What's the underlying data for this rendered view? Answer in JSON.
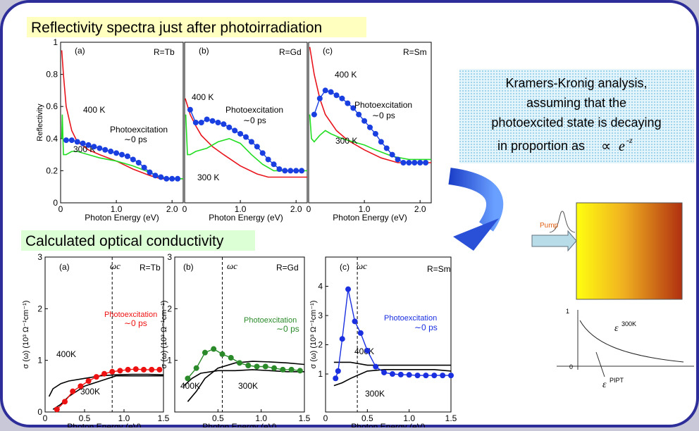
{
  "slide": {
    "heading_top": "Reflectivity spectra just after photoirradiation",
    "heading_bottom": "Calculated optical conductivity",
    "note": {
      "lines": [
        "Kramers-Kronig analysis,",
        "assuming that the",
        "photoexcited state is decaying",
        "in proportion as"
      ],
      "symbol": "∝",
      "base": "e",
      "exponent": "-z"
    }
  },
  "chart_data": [
    {
      "type": "line",
      "xlabel": "Photon Energy (eV)",
      "ylabel": "Reflectivity",
      "xlim": [
        0,
        2.2
      ],
      "ylim": [
        0,
        1
      ],
      "xticks": [
        0,
        {
          "value": 1,
          "label": "1.0"
        },
        {
          "value": 2,
          "label": "2.0"
        }
      ],
      "yticks": [
        0,
        0.2,
        0.4,
        0.6,
        0.8,
        1
      ],
      "annotations": [
        "(a)",
        "R=Tb",
        "∼0 ps"
      ],
      "series": [
        {
          "name": "400 K",
          "color": "#e8141c",
          "mode": "line",
          "x": [
            0.02,
            0.05,
            0.1,
            0.2,
            0.3,
            0.5,
            0.7,
            1.0,
            1.3,
            1.6,
            1.8,
            2.0,
            2.2
          ],
          "values": [
            0.95,
            0.8,
            0.6,
            0.45,
            0.38,
            0.33,
            0.3,
            0.26,
            0.21,
            0.17,
            0.15,
            0.15,
            0.15
          ]
        },
        {
          "name": "300 K",
          "color": "#22dd22",
          "mode": "line",
          "x": [
            0.02,
            0.03,
            0.05,
            0.1,
            0.2,
            0.3,
            0.5,
            0.7,
            1.0,
            1.3,
            1.6,
            1.8,
            2.0,
            2.2
          ],
          "values": [
            0.4,
            0.55,
            0.3,
            0.3,
            0.32,
            0.32,
            0.3,
            0.28,
            0.26,
            0.23,
            0.19,
            0.16,
            0.15,
            0.15
          ]
        },
        {
          "name": "Photoexcitation",
          "color": "#1a3fe0",
          "mode": "line+points",
          "x": [
            0.1,
            0.2,
            0.3,
            0.4,
            0.5,
            0.6,
            0.7,
            0.8,
            0.9,
            1.0,
            1.1,
            1.2,
            1.3,
            1.4,
            1.5,
            1.6,
            1.7,
            1.8,
            1.9,
            2.0,
            2.1
          ],
          "values": [
            0.39,
            0.39,
            0.38,
            0.37,
            0.36,
            0.35,
            0.34,
            0.33,
            0.32,
            0.31,
            0.3,
            0.29,
            0.27,
            0.25,
            0.22,
            0.19,
            0.17,
            0.16,
            0.15,
            0.15,
            0.15
          ]
        }
      ]
    },
    {
      "type": "line",
      "xlabel": "Photon Energy (eV)",
      "xlim": [
        0,
        2.2
      ],
      "ylim": [
        0,
        1
      ],
      "xticks": [
        0,
        {
          "value": 1,
          "label": "1.0"
        },
        {
          "value": 2,
          "label": "2.0"
        }
      ],
      "annotations": [
        "(b)",
        "R=Gd",
        "∼0 ps"
      ],
      "series": [
        {
          "name": "400 K",
          "color": "#e8141c",
          "mode": "line",
          "x": [
            0.01,
            0.02,
            0.1,
            0.2,
            0.3,
            0.5,
            0.7,
            1.0,
            1.3,
            1.5,
            1.8,
            2.2
          ],
          "values": [
            0.65,
            0.64,
            0.55,
            0.48,
            0.42,
            0.35,
            0.3,
            0.23,
            0.18,
            0.16,
            0.16,
            0.16
          ]
        },
        {
          "name": "300 K",
          "color": "#22dd22",
          "mode": "line",
          "x": [
            0.02,
            0.05,
            0.1,
            0.2,
            0.4,
            0.6,
            0.8,
            1.0,
            1.2,
            1.4,
            1.6,
            2.2
          ],
          "values": [
            0.55,
            0.3,
            0.3,
            0.32,
            0.34,
            0.38,
            0.4,
            0.37,
            0.3,
            0.24,
            0.2,
            0.2
          ]
        },
        {
          "name": "Photoexcitation",
          "color": "#1a3fe0",
          "mode": "line+points",
          "x": [
            0.1,
            0.2,
            0.3,
            0.4,
            0.5,
            0.6,
            0.7,
            0.8,
            0.9,
            1.0,
            1.1,
            1.2,
            1.3,
            1.4,
            1.5,
            1.6,
            1.7,
            1.8,
            1.9,
            2.0,
            2.1
          ],
          "values": [
            0.58,
            0.5,
            0.5,
            0.52,
            0.51,
            0.5,
            0.49,
            0.47,
            0.45,
            0.43,
            0.41,
            0.38,
            0.35,
            0.31,
            0.27,
            0.24,
            0.21,
            0.2,
            0.2,
            0.2,
            0.2
          ]
        }
      ]
    },
    {
      "type": "line",
      "xlabel": "Photon Energy (eV)",
      "xlim": [
        0,
        2.2
      ],
      "ylim": [
        0,
        1
      ],
      "xticks": [
        0,
        {
          "value": 1,
          "label": "1.0"
        },
        {
          "value": 2,
          "label": "2.0"
        }
      ],
      "annotations": [
        "(c)",
        "R=Sm",
        "∼0 ps"
      ],
      "series": [
        {
          "name": "400 K",
          "color": "#e8141c",
          "mode": "line",
          "x": [
            0.02,
            0.1,
            0.2,
            0.3,
            0.5,
            0.7,
            1.0,
            1.3,
            1.6,
            1.8,
            2.2
          ],
          "values": [
            0.97,
            0.8,
            0.65,
            0.55,
            0.45,
            0.39,
            0.33,
            0.28,
            0.25,
            0.25,
            0.25
          ]
        },
        {
          "name": "300 K",
          "color": "#22dd22",
          "mode": "line",
          "x": [
            0.02,
            0.05,
            0.1,
            0.2,
            0.3,
            0.4,
            0.6,
            0.8,
            1.0,
            1.2,
            1.5,
            1.8,
            2.2
          ],
          "values": [
            0.55,
            0.4,
            0.38,
            0.42,
            0.45,
            0.43,
            0.4,
            0.38,
            0.36,
            0.33,
            0.29,
            0.27,
            0.27
          ]
        },
        {
          "name": "Photoexcitation",
          "color": "#1a3fe0",
          "mode": "line+points",
          "x": [
            0.1,
            0.2,
            0.3,
            0.4,
            0.5,
            0.6,
            0.7,
            0.8,
            0.9,
            1.0,
            1.1,
            1.2,
            1.3,
            1.4,
            1.5,
            1.6,
            1.7,
            1.8,
            1.9,
            2.0,
            2.1
          ],
          "values": [
            0.55,
            0.65,
            0.7,
            0.69,
            0.67,
            0.65,
            0.62,
            0.59,
            0.55,
            0.51,
            0.47,
            0.43,
            0.38,
            0.34,
            0.3,
            0.27,
            0.25,
            0.25,
            0.25,
            0.25,
            0.25
          ]
        }
      ]
    },
    {
      "type": "line",
      "xlabel": "Photon Energy (eV)",
      "ylabel": "σ (ω) (10³ Ω⁻¹cm⁻¹)",
      "xlim": [
        0,
        1.5
      ],
      "ylim": [
        0,
        3
      ],
      "xticks": [
        0,
        0.5,
        {
          "value": 1,
          "label": "1.0"
        },
        1.5
      ],
      "yticks": [
        0,
        1,
        2,
        3
      ],
      "vline": 0.85,
      "annotations": [
        "(a)",
        "R=Tb",
        "∼0 ps",
        "ωc"
      ],
      "series": [
        {
          "name": "400K",
          "color": "#000000",
          "mode": "line",
          "x": [
            0.05,
            0.1,
            0.2,
            0.3,
            0.5,
            0.7,
            0.9,
            1.1,
            1.3,
            1.5
          ],
          "values": [
            0.3,
            0.45,
            0.55,
            0.6,
            0.65,
            0.7,
            0.72,
            0.73,
            0.73,
            0.72
          ]
        },
        {
          "name": "300K",
          "color": "#000000",
          "mode": "line",
          "x": [
            0.1,
            0.2,
            0.3,
            0.5,
            0.7,
            0.9,
            1.1,
            1.3,
            1.5
          ],
          "values": [
            0.05,
            0.15,
            0.3,
            0.5,
            0.6,
            0.7,
            0.7,
            0.7,
            0.7
          ]
        },
        {
          "name": "Photoexcitation",
          "color": "#ee1111",
          "mode": "line+points",
          "x": [
            0.15,
            0.25,
            0.35,
            0.45,
            0.55,
            0.65,
            0.75,
            0.85,
            0.95,
            1.05,
            1.15,
            1.25,
            1.35,
            1.45
          ],
          "values": [
            0.05,
            0.2,
            0.4,
            0.5,
            0.6,
            0.68,
            0.74,
            0.78,
            0.8,
            0.82,
            0.83,
            0.82,
            0.82,
            0.82
          ]
        }
      ]
    },
    {
      "type": "line",
      "xlabel": "Photon Energy (eV)",
      "ylabel": "σ (ω) (10³ Ω⁻¹cm⁻¹)",
      "xlim": [
        0,
        1.5
      ],
      "ylim": [
        0,
        3
      ],
      "xticks": [
        0.5,
        {
          "value": 1,
          "label": "1.0"
        },
        1.5
      ],
      "yticks": [
        1,
        2,
        3
      ],
      "vline": 0.55,
      "annotations": [
        "(b)",
        "R=Gd",
        "∼0 ps",
        "ωc"
      ],
      "series": [
        {
          "name": "400K",
          "color": "#000000",
          "mode": "line",
          "x": [
            0.1,
            0.2,
            0.3,
            0.5,
            0.7,
            0.9,
            1.1,
            1.3,
            1.5
          ],
          "values": [
            0.5,
            0.65,
            0.75,
            0.8,
            0.8,
            0.82,
            0.8,
            0.78,
            0.78
          ]
        },
        {
          "name": "300K",
          "color": "#000000",
          "mode": "line",
          "x": [
            0.15,
            0.25,
            0.35,
            0.5,
            0.7,
            0.9,
            1.1,
            1.3,
            1.5
          ],
          "values": [
            0.2,
            0.4,
            0.65,
            0.85,
            0.95,
            0.98,
            0.97,
            0.95,
            0.92
          ]
        },
        {
          "name": "Photoexcitation",
          "color": "#2a8a2a",
          "mode": "line+points",
          "x": [
            0.15,
            0.25,
            0.35,
            0.45,
            0.55,
            0.65,
            0.75,
            0.85,
            0.95,
            1.05,
            1.15,
            1.25,
            1.35,
            1.45
          ],
          "values": [
            0.65,
            0.85,
            1.15,
            1.22,
            1.12,
            1.05,
            0.95,
            0.9,
            0.88,
            0.88,
            0.85,
            0.82,
            0.82,
            0.8
          ]
        }
      ]
    },
    {
      "type": "line",
      "xlabel": "Photon Energy (eV)",
      "ylabel": "σ (ω) (10³ Ω⁻¹cm⁻¹)",
      "xlim": [
        0,
        1.5
      ],
      "ylim": [
        -0.3,
        5
      ],
      "xticks": [
        0,
        0.5,
        {
          "value": 1,
          "label": "1.0"
        },
        1.5
      ],
      "yticks": [
        1,
        2,
        3,
        4
      ],
      "vline": 0.38,
      "annotations": [
        "(c)",
        "R=Sm",
        "∼0 ps",
        "ωc"
      ],
      "series": [
        {
          "name": "400K",
          "color": "#000000",
          "mode": "line",
          "x": [
            0.1,
            0.3,
            0.5,
            0.7,
            1.0,
            1.3,
            1.5
          ],
          "values": [
            1.4,
            1.4,
            1.3,
            1.3,
            1.3,
            1.3,
            1.3
          ]
        },
        {
          "name": "300K",
          "color": "#000000",
          "mode": "line",
          "x": [
            0.1,
            0.2,
            0.3,
            0.5,
            0.7,
            1.0,
            1.3,
            1.5
          ],
          "values": [
            0.6,
            0.7,
            0.85,
            1.1,
            1.15,
            1.15,
            1.15,
            1.1
          ]
        },
        {
          "name": "Photoexcitation",
          "color": "#1a2fe0",
          "mode": "line+points",
          "x": [
            0.12,
            0.15,
            0.2,
            0.27,
            0.35,
            0.42,
            0.5,
            0.6,
            0.7,
            0.8,
            0.9,
            1.0,
            1.1,
            1.2,
            1.3,
            1.4,
            1.5
          ],
          "values": [
            0.85,
            1.1,
            2.2,
            3.9,
            2.8,
            2.4,
            1.8,
            1.25,
            1.05,
            1.0,
            0.98,
            0.97,
            0.95,
            0.95,
            0.95,
            0.95,
            0.95
          ]
        }
      ]
    }
  ],
  "diagram": {
    "pump": "Pump",
    "one": "1",
    "zero": "0",
    "eps": "ε",
    "eps_300": "300K",
    "eps_pipt": "PIPT"
  }
}
